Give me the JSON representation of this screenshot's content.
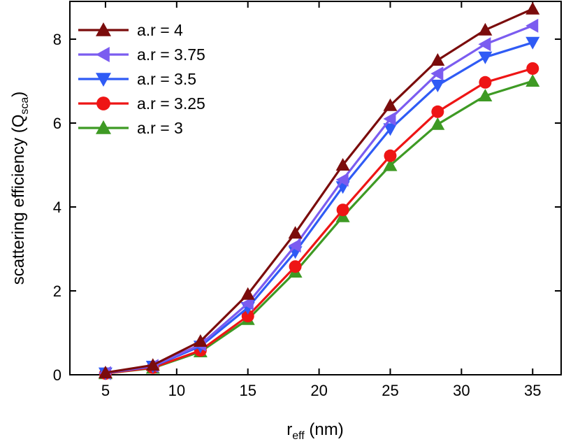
{
  "chart_data": {
    "type": "line",
    "title": "",
    "xlabel": {
      "main": "r",
      "sub": "eff",
      "unit": " (nm)"
    },
    "ylabel": {
      "main": "scattering efficiency (Q",
      "sub": "sca",
      "close": ")"
    },
    "xlim": [
      2.5,
      37
    ],
    "ylim": [
      0,
      8.9
    ],
    "xticks": [
      5,
      10,
      15,
      20,
      25,
      30,
      35
    ],
    "yticks": [
      0,
      2,
      4,
      6,
      8
    ],
    "grid": false,
    "legend_position": "top-left",
    "x": [
      5,
      8.33,
      11.67,
      15,
      18.33,
      21.67,
      25,
      28.33,
      31.67,
      35
    ],
    "series": [
      {
        "name": "a.r = 4",
        "color": "#7b0c0c",
        "marker": "triangle-up",
        "values": [
          0.05,
          0.23,
          0.8,
          1.92,
          3.38,
          5.0,
          6.42,
          7.5,
          8.22,
          8.72
        ]
      },
      {
        "name": "a.r = 3.75",
        "color": "#7b5cf0",
        "marker": "triangle-left",
        "values": [
          0.04,
          0.21,
          0.72,
          1.7,
          3.08,
          4.65,
          6.1,
          7.18,
          7.88,
          8.32
        ]
      },
      {
        "name": "a.r = 3.5",
        "color": "#2f5bf5",
        "marker": "triangle-down",
        "values": [
          0.04,
          0.2,
          0.68,
          1.6,
          2.93,
          4.48,
          5.86,
          6.9,
          7.57,
          7.92
        ]
      },
      {
        "name": "a.r = 3.25",
        "color": "#ee1515",
        "marker": "circle",
        "values": [
          0.03,
          0.17,
          0.58,
          1.4,
          2.58,
          3.93,
          5.22,
          6.27,
          6.97,
          7.3
        ]
      },
      {
        "name": "a.r = 3",
        "color": "#3e9a24",
        "marker": "triangle-up",
        "values": [
          0.03,
          0.16,
          0.55,
          1.32,
          2.45,
          3.77,
          4.99,
          5.97,
          6.65,
          7.0
        ]
      }
    ]
  }
}
